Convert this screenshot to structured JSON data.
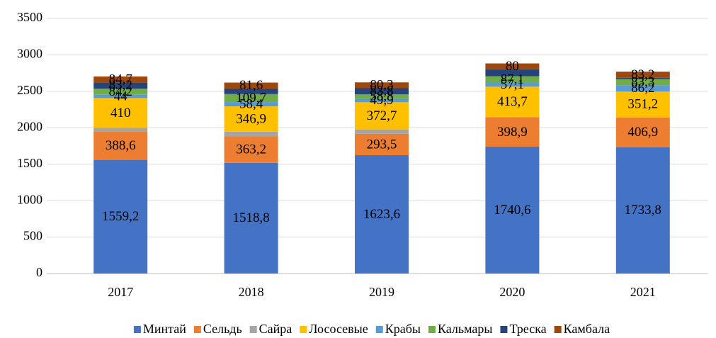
{
  "chart_data": {
    "type": "stacked_bar",
    "categories": [
      "2017",
      "2018",
      "2019",
      "2020",
      "2021"
    ],
    "series": [
      {
        "name": "Минтай",
        "color": "#4472c4",
        "values": [
          1559.2,
          1518.8,
          1623.6,
          1740.6,
          1733.8
        ],
        "value_labels": [
          "1559,2",
          "1518,8",
          "1623,6",
          "1740,6",
          "1733,8"
        ]
      },
      {
        "name": "Сельдь",
        "color": "#ed7d31",
        "values": [
          388.6,
          363.2,
          293.5,
          398.9,
          406.9
        ],
        "value_labels": [
          "388,6",
          "363,2",
          "293,5",
          "398,9",
          "406,9"
        ]
      },
      {
        "name": "Сайра",
        "color": "#a5a5a5",
        "values": [
          50,
          65,
          60,
          10,
          5
        ],
        "value_labels": [
          null,
          null,
          null,
          null,
          null
        ]
      },
      {
        "name": "Лососевые",
        "color": "#ffc000",
        "values": [
          410,
          346.9,
          372.7,
          413.7,
          351.2
        ],
        "value_labels": [
          "410",
          "346,9",
          "372,7",
          "413,7",
          "351,2"
        ]
      },
      {
        "name": "Крабы",
        "color": "#5b9bd5",
        "values": [
          44,
          58.4,
          49.9,
          57.1,
          86.2
        ],
        "value_labels": [
          "44",
          "58,4",
          "49,9",
          "57,1",
          "86,2"
        ]
      },
      {
        "name": "Кальмары",
        "color": "#70ad47",
        "values": [
          84.2,
          109.7,
          58.8,
          87.1,
          83.3
        ],
        "value_labels": [
          "84,2",
          "109,7",
          "58,8",
          "87,1",
          "83,3"
        ]
      },
      {
        "name": "Треска",
        "color": "#264478",
        "values": [
          83.2,
          76,
          83.8,
          95,
          20
        ],
        "value_labels": [
          "83,2",
          null,
          "83,8",
          null,
          null
        ]
      },
      {
        "name": "Камбала",
        "color": "#9e480e",
        "values": [
          84.7,
          81.6,
          80.3,
          80,
          83.2
        ],
        "value_labels": [
          "84,7",
          "81,6",
          "80,3",
          "80",
          "83,2"
        ]
      }
    ],
    "ylim": [
      0,
      3500
    ],
    "yticks": [
      0,
      500,
      1000,
      1500,
      2000,
      2500,
      3000,
      3500
    ],
    "grid": true,
    "legend": "bottom"
  }
}
